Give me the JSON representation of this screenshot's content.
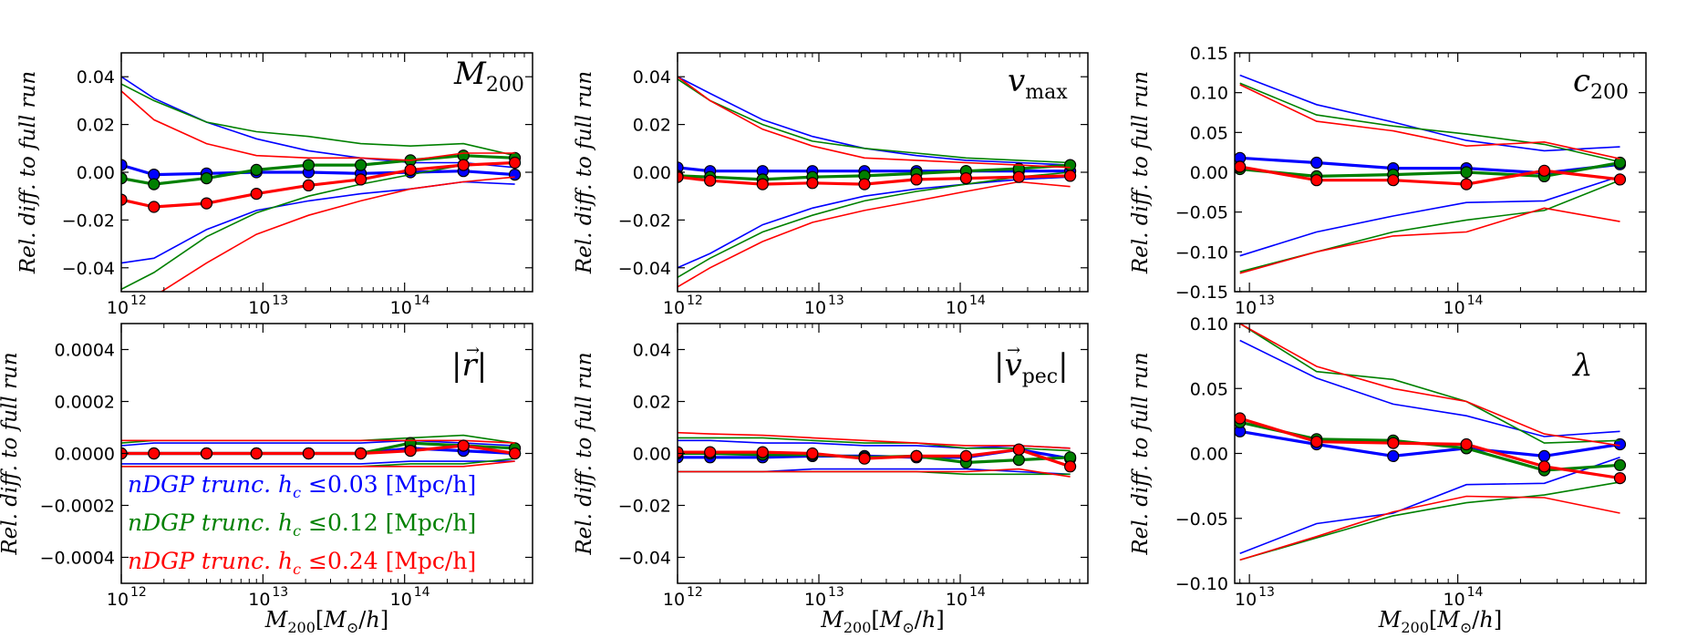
{
  "figure": {
    "ylabel": "Rel. diff. to full run",
    "xlabel": "M₂₀₀[M⊙/h]"
  },
  "legend": [
    {
      "label": "nDGP trunc. h_c ≤0.03 [Mpc/h]",
      "text": "nDGP trunc. ",
      "var": "h",
      "sub": "c",
      "rest": " ≤0.03 [Mpc/h]",
      "color": "#0000ff"
    },
    {
      "label": "nDGP trunc. h_c ≤0.12 [Mpc/h]",
      "text": "nDGP trunc. ",
      "var": "h",
      "sub": "c",
      "rest": " ≤0.12 [Mpc/h]",
      "color": "#008000"
    },
    {
      "label": "nDGP trunc. h_c ≤0.24 [Mpc/h]",
      "text": "nDGP trunc. ",
      "var": "h",
      "sub": "c",
      "rest": " ≤0.24 [Mpc/h]",
      "color": "#ff0000"
    }
  ],
  "chart_data": [
    {
      "type": "line",
      "panel": "M200",
      "label_main": "M",
      "label_sub": "200",
      "label_italic_sub": false,
      "xscale": "log",
      "xlim": [
        1000000000000.0,
        800000000000000.0
      ],
      "ylim": [
        -0.05,
        0.05
      ],
      "xticks": [
        {
          "v": 1000000000000.0,
          "label": "10",
          "exp": "12"
        },
        {
          "v": 10000000000000.0,
          "label": "10",
          "exp": "13"
        },
        {
          "v": 100000000000000.0,
          "label": "10",
          "exp": "14"
        }
      ],
      "yticks": [
        {
          "v": -0.04,
          "label": "−0.04"
        },
        {
          "v": -0.02,
          "label": "−0.02"
        },
        {
          "v": 0.0,
          "label": "0.00"
        },
        {
          "v": 0.02,
          "label": "0.02"
        },
        {
          "v": 0.04,
          "label": "0.04"
        }
      ],
      "show_xlabel": false,
      "x": [
        1000000000000.0,
        1700000000000.0,
        4000000000000.0,
        9000000000000.0,
        21000000000000.0,
        49000000000000.0,
        110000000000000.0,
        260000000000000.0,
        600000000000000.0
      ],
      "series": [
        {
          "name": "h_c ≤0.03",
          "color": "#0000ff",
          "mean": [
            0.003,
            -0.001,
            -0.0005,
            0.0,
            0.0,
            -0.0005,
            0.0,
            0.0005,
            -0.001
          ],
          "upper": [
            0.04,
            0.031,
            0.021,
            0.014,
            0.009,
            0.006,
            0.004,
            0.004,
            0.002
          ],
          "lower": [
            -0.038,
            -0.036,
            -0.024,
            -0.016,
            -0.012,
            -0.009,
            -0.007,
            -0.004,
            -0.005
          ]
        },
        {
          "name": "h_c ≤0.12",
          "color": "#008000",
          "mean": [
            -0.0025,
            -0.005,
            -0.0025,
            0.001,
            0.003,
            0.003,
            0.005,
            0.007,
            0.006
          ],
          "upper": [
            0.037,
            0.03,
            0.021,
            0.017,
            0.015,
            0.012,
            0.011,
            0.012,
            0.007
          ],
          "lower": [
            -0.049,
            -0.042,
            -0.027,
            -0.017,
            -0.01,
            -0.005,
            -0.001,
            0.003,
            0.004
          ]
        },
        {
          "name": "h_c ≤0.24",
          "color": "#ff0000",
          "mean": [
            -0.0115,
            -0.0145,
            -0.013,
            -0.009,
            -0.0055,
            -0.003,
            0.001,
            0.003,
            0.004
          ],
          "upper": [
            0.034,
            0.022,
            0.012,
            0.007,
            0.006,
            0.006,
            0.005,
            0.008,
            0.008
          ],
          "lower": [
            -0.062,
            -0.052,
            -0.038,
            -0.026,
            -0.018,
            -0.012,
            -0.007,
            -0.004,
            -0.002
          ]
        }
      ]
    },
    {
      "type": "line",
      "panel": "vmax",
      "label_main": "v",
      "label_sub": "max",
      "label_italic_sub": false,
      "xscale": "log",
      "xlim": [
        1000000000000.0,
        800000000000000.0
      ],
      "ylim": [
        -0.05,
        0.05
      ],
      "xticks": [
        {
          "v": 1000000000000.0,
          "label": "10",
          "exp": "12"
        },
        {
          "v": 10000000000000.0,
          "label": "10",
          "exp": "13"
        },
        {
          "v": 100000000000000.0,
          "label": "10",
          "exp": "14"
        }
      ],
      "yticks": [
        {
          "v": -0.04,
          "label": "−0.04"
        },
        {
          "v": -0.02,
          "label": "−0.02"
        },
        {
          "v": 0.0,
          "label": "0.00"
        },
        {
          "v": 0.02,
          "label": "0.02"
        },
        {
          "v": 0.04,
          "label": "0.04"
        }
      ],
      "show_xlabel": false,
      "x": [
        1000000000000.0,
        1700000000000.0,
        4000000000000.0,
        9000000000000.0,
        21000000000000.0,
        49000000000000.0,
        110000000000000.0,
        260000000000000.0,
        600000000000000.0
      ],
      "series": [
        {
          "name": "h_c ≤0.03",
          "color": "#0000ff",
          "mean": [
            0.002,
            0.0005,
            0.0005,
            0.0005,
            0.0005,
            0.0005,
            0.0005,
            0.0005,
            0.0005
          ],
          "upper": [
            0.04,
            0.033,
            0.022,
            0.015,
            0.01,
            0.007,
            0.005,
            0.004,
            0.003
          ],
          "lower": [
            -0.04,
            -0.034,
            -0.022,
            -0.015,
            -0.01,
            -0.007,
            -0.005,
            -0.003,
            -0.002
          ]
        },
        {
          "name": "h_c ≤0.12",
          "color": "#008000",
          "mean": [
            -0.0015,
            -0.002,
            -0.003,
            -0.002,
            -0.0015,
            -0.0005,
            0.0005,
            0.0015,
            0.003
          ],
          "upper": [
            0.039,
            0.03,
            0.02,
            0.013,
            0.01,
            0.008,
            0.006,
            0.005,
            0.004
          ],
          "lower": [
            -0.044,
            -0.036,
            -0.025,
            -0.018,
            -0.012,
            -0.008,
            -0.005,
            -0.002,
            0.0
          ]
        },
        {
          "name": "h_c ≤0.24",
          "color": "#ff0000",
          "mean": [
            -0.002,
            -0.0035,
            -0.005,
            -0.0045,
            -0.005,
            -0.003,
            -0.0025,
            -0.002,
            -0.0015
          ],
          "upper": [
            0.04,
            0.03,
            0.018,
            0.011,
            0.006,
            0.005,
            0.004,
            0.003,
            0.002
          ],
          "lower": [
            -0.048,
            -0.04,
            -0.029,
            -0.021,
            -0.016,
            -0.012,
            -0.008,
            -0.004,
            -0.006
          ]
        }
      ]
    },
    {
      "type": "line",
      "panel": "c200",
      "label_main": "c",
      "label_sub": "200",
      "label_italic_sub": false,
      "xscale": "log",
      "xlim": [
        8500000000000.0,
        800000000000000.0
      ],
      "ylim": [
        -0.15,
        0.15
      ],
      "xticks": [
        {
          "v": 10000000000000.0,
          "label": "10",
          "exp": "13"
        },
        {
          "v": 100000000000000.0,
          "label": "10",
          "exp": "14"
        }
      ],
      "yticks": [
        {
          "v": -0.15,
          "label": "−0.15"
        },
        {
          "v": -0.1,
          "label": "−0.10"
        },
        {
          "v": -0.05,
          "label": "−0.05"
        },
        {
          "v": 0.0,
          "label": "0.00"
        },
        {
          "v": 0.05,
          "label": "0.05"
        },
        {
          "v": 0.1,
          "label": "0.10"
        },
        {
          "v": 0.15,
          "label": "0.15"
        }
      ],
      "show_xlabel": false,
      "x": [
        9000000000000.0,
        21000000000000.0,
        49000000000000.0,
        110000000000000.0,
        260000000000000.0,
        600000000000000.0
      ],
      "series": [
        {
          "name": "h_c ≤0.03",
          "color": "#0000ff",
          "mean": [
            0.018,
            0.012,
            0.005,
            0.005,
            -0.001,
            0.01
          ],
          "upper": [
            0.122,
            0.085,
            0.063,
            0.04,
            0.027,
            0.032
          ],
          "lower": [
            -0.105,
            -0.075,
            -0.055,
            -0.038,
            -0.036,
            -0.005
          ]
        },
        {
          "name": "h_c ≤0.12",
          "color": "#008000",
          "mean": [
            0.004,
            -0.005,
            -0.003,
            0.0,
            -0.005,
            0.012
          ],
          "upper": [
            0.112,
            0.072,
            0.058,
            0.048,
            0.035,
            0.013
          ],
          "lower": [
            -0.125,
            -0.1,
            -0.075,
            -0.06,
            -0.048,
            -0.01
          ]
        },
        {
          "name": "h_c ≤0.24",
          "color": "#ff0000",
          "mean": [
            0.007,
            -0.01,
            -0.01,
            -0.015,
            0.002,
            -0.009
          ],
          "upper": [
            0.11,
            0.064,
            0.052,
            0.033,
            0.038,
            0.017
          ],
          "lower": [
            -0.127,
            -0.1,
            -0.08,
            -0.075,
            -0.045,
            -0.062
          ]
        }
      ]
    },
    {
      "type": "line",
      "panel": "r",
      "label_main": "|r|",
      "label_sub": "",
      "label_italic_sub": false,
      "xscale": "log",
      "xlim": [
        1000000000000.0,
        800000000000000.0
      ],
      "ylim": [
        -0.0005,
        0.0005
      ],
      "xticks": [
        {
          "v": 1000000000000.0,
          "label": "10",
          "exp": "12"
        },
        {
          "v": 10000000000000.0,
          "label": "10",
          "exp": "13"
        },
        {
          "v": 100000000000000.0,
          "label": "10",
          "exp": "14"
        }
      ],
      "yticks": [
        {
          "v": -0.0004,
          "label": "−0.0004"
        },
        {
          "v": -0.0002,
          "label": "−0.0002"
        },
        {
          "v": 0.0,
          "label": "0.0000"
        },
        {
          "v": 0.0002,
          "label": "0.0002"
        },
        {
          "v": 0.0004,
          "label": "0.0004"
        }
      ],
      "show_xlabel": true,
      "x": [
        1000000000000.0,
        1700000000000.0,
        4000000000000.0,
        9000000000000.0,
        21000000000000.0,
        49000000000000.0,
        110000000000000.0,
        260000000000000.0,
        600000000000000.0
      ],
      "series": [
        {
          "name": "h_c ≤0.03",
          "color": "#0000ff",
          "mean": [
            0.0,
            0.0,
            0.0,
            0.0,
            0.0,
            0.0,
            2e-05,
            1e-05,
            0.0
          ],
          "upper": [
            3e-05,
            4e-05,
            4e-05,
            4e-05,
            4e-05,
            4e-05,
            5e-05,
            4e-05,
            3e-05
          ],
          "lower": [
            -4e-05,
            -4e-05,
            -4e-05,
            -4e-05,
            -4e-05,
            -4e-05,
            -3e-05,
            -3e-05,
            -3e-05
          ]
        },
        {
          "name": "h_c ≤0.12",
          "color": "#008000",
          "mean": [
            0.0,
            0.0,
            0.0,
            0.0,
            0.0,
            0.0,
            4e-05,
            3e-05,
            2e-05
          ],
          "upper": [
            4e-05,
            5e-05,
            5e-05,
            5e-05,
            5e-05,
            5e-05,
            6e-05,
            7e-05,
            4e-05
          ],
          "lower": [
            -5e-05,
            -5e-05,
            -5e-05,
            -5e-05,
            -5e-05,
            -5e-05,
            -4e-05,
            -4e-05,
            -2e-05
          ]
        },
        {
          "name": "h_c ≤0.24",
          "color": "#ff0000",
          "mean": [
            0.0,
            0.0,
            0.0,
            0.0,
            0.0,
            0.0,
            1e-05,
            3e-05,
            0.0
          ],
          "upper": [
            5e-05,
            5e-05,
            5e-05,
            5e-05,
            5e-05,
            5e-05,
            5e-05,
            5e-05,
            4e-05
          ],
          "lower": [
            -5e-05,
            -5e-05,
            -5e-05,
            -5e-05,
            -5e-05,
            -5e-05,
            -5e-05,
            -5e-05,
            -3e-05
          ]
        }
      ]
    },
    {
      "type": "line",
      "panel": "vpec",
      "label_main": "|v",
      "label_sub": "pec",
      "label_italic_sub": false,
      "xscale": "log",
      "xlim": [
        1000000000000.0,
        800000000000000.0
      ],
      "ylim": [
        -0.05,
        0.05
      ],
      "xticks": [
        {
          "v": 1000000000000.0,
          "label": "10",
          "exp": "12"
        },
        {
          "v": 10000000000000.0,
          "label": "10",
          "exp": "13"
        },
        {
          "v": 100000000000000.0,
          "label": "10",
          "exp": "14"
        }
      ],
      "yticks": [
        {
          "v": -0.04,
          "label": "−0.04"
        },
        {
          "v": -0.02,
          "label": "−0.02"
        },
        {
          "v": 0.0,
          "label": "0.00"
        },
        {
          "v": 0.02,
          "label": "0.02"
        },
        {
          "v": 0.04,
          "label": "0.04"
        }
      ],
      "show_xlabel": true,
      "x": [
        1000000000000.0,
        1700000000000.0,
        4000000000000.0,
        9000000000000.0,
        21000000000000.0,
        49000000000000.0,
        110000000000000.0,
        260000000000000.0,
        600000000000000.0
      ],
      "series": [
        {
          "name": "h_c ≤0.03",
          "color": "#0000ff",
          "mean": [
            -0.0015,
            -0.0015,
            -0.0015,
            -0.001,
            -0.001,
            -0.0015,
            -0.0015,
            0.0015,
            -0.002
          ],
          "upper": [
            0.005,
            0.005,
            0.004,
            0.004,
            0.003,
            0.003,
            0.002,
            0.003,
            0.002
          ],
          "lower": [
            -0.007,
            -0.007,
            -0.007,
            -0.006,
            -0.006,
            -0.006,
            -0.006,
            -0.007,
            -0.008
          ]
        },
        {
          "name": "h_c ≤0.12",
          "color": "#008000",
          "mean": [
            0.0,
            0.0,
            -0.0005,
            -0.0005,
            -0.0015,
            -0.001,
            -0.0035,
            -0.0025,
            -0.0015
          ],
          "upper": [
            0.006,
            0.006,
            0.006,
            0.005,
            0.004,
            0.004,
            0.002,
            0.002,
            0.001
          ],
          "lower": [
            -0.007,
            -0.007,
            -0.007,
            -0.007,
            -0.007,
            -0.007,
            -0.008,
            -0.008,
            -0.008
          ]
        },
        {
          "name": "h_c ≤0.24",
          "color": "#ff0000",
          "mean": [
            0.0005,
            0.0005,
            0.0005,
            0.0,
            -0.002,
            -0.001,
            -0.001,
            0.0015,
            -0.005
          ],
          "upper": [
            0.008,
            0.0075,
            0.007,
            0.006,
            0.005,
            0.004,
            0.003,
            0.003,
            0.002
          ],
          "lower": [
            -0.007,
            -0.007,
            -0.007,
            -0.007,
            -0.007,
            -0.007,
            -0.007,
            -0.006,
            -0.009
          ]
        }
      ]
    },
    {
      "type": "line",
      "panel": "lambda",
      "label_main": "λ",
      "label_sub": "",
      "label_italic_sub": false,
      "xscale": "log",
      "xlim": [
        8500000000000.0,
        800000000000000.0
      ],
      "ylim": [
        -0.1,
        0.1
      ],
      "xticks": [
        {
          "v": 10000000000000.0,
          "label": "10",
          "exp": "13"
        },
        {
          "v": 100000000000000.0,
          "label": "10",
          "exp": "14"
        }
      ],
      "yticks": [
        {
          "v": -0.1,
          "label": "−0.10"
        },
        {
          "v": -0.05,
          "label": "−0.05"
        },
        {
          "v": 0.0,
          "label": "0.00"
        },
        {
          "v": 0.05,
          "label": "0.05"
        },
        {
          "v": 0.1,
          "label": "0.10"
        }
      ],
      "show_xlabel": true,
      "x": [
        9000000000000.0,
        21000000000000.0,
        49000000000000.0,
        110000000000000.0,
        260000000000000.0,
        600000000000000.0
      ],
      "series": [
        {
          "name": "h_c ≤0.03",
          "color": "#0000ff",
          "mean": [
            0.017,
            0.007,
            -0.002,
            0.004,
            -0.002,
            0.007
          ],
          "upper": [
            0.087,
            0.058,
            0.038,
            0.029,
            0.013,
            0.017
          ],
          "lower": [
            -0.077,
            -0.054,
            -0.046,
            -0.024,
            -0.023,
            -0.003
          ]
        },
        {
          "name": "h_c ≤0.12",
          "color": "#008000",
          "mean": [
            0.024,
            0.011,
            0.01,
            0.004,
            -0.013,
            -0.009
          ],
          "upper": [
            0.1,
            0.063,
            0.057,
            0.04,
            0.008,
            0.01
          ],
          "lower": [
            -0.082,
            -0.065,
            -0.048,
            -0.038,
            -0.032,
            -0.022
          ]
        },
        {
          "name": "h_c ≤0.24",
          "color": "#ff0000",
          "mean": [
            0.027,
            0.009,
            0.008,
            0.007,
            -0.01,
            -0.019
          ],
          "upper": [
            0.1,
            0.067,
            0.05,
            0.04,
            0.015,
            0.006
          ],
          "lower": [
            -0.082,
            -0.064,
            -0.045,
            -0.033,
            -0.034,
            -0.046
          ]
        }
      ]
    }
  ]
}
